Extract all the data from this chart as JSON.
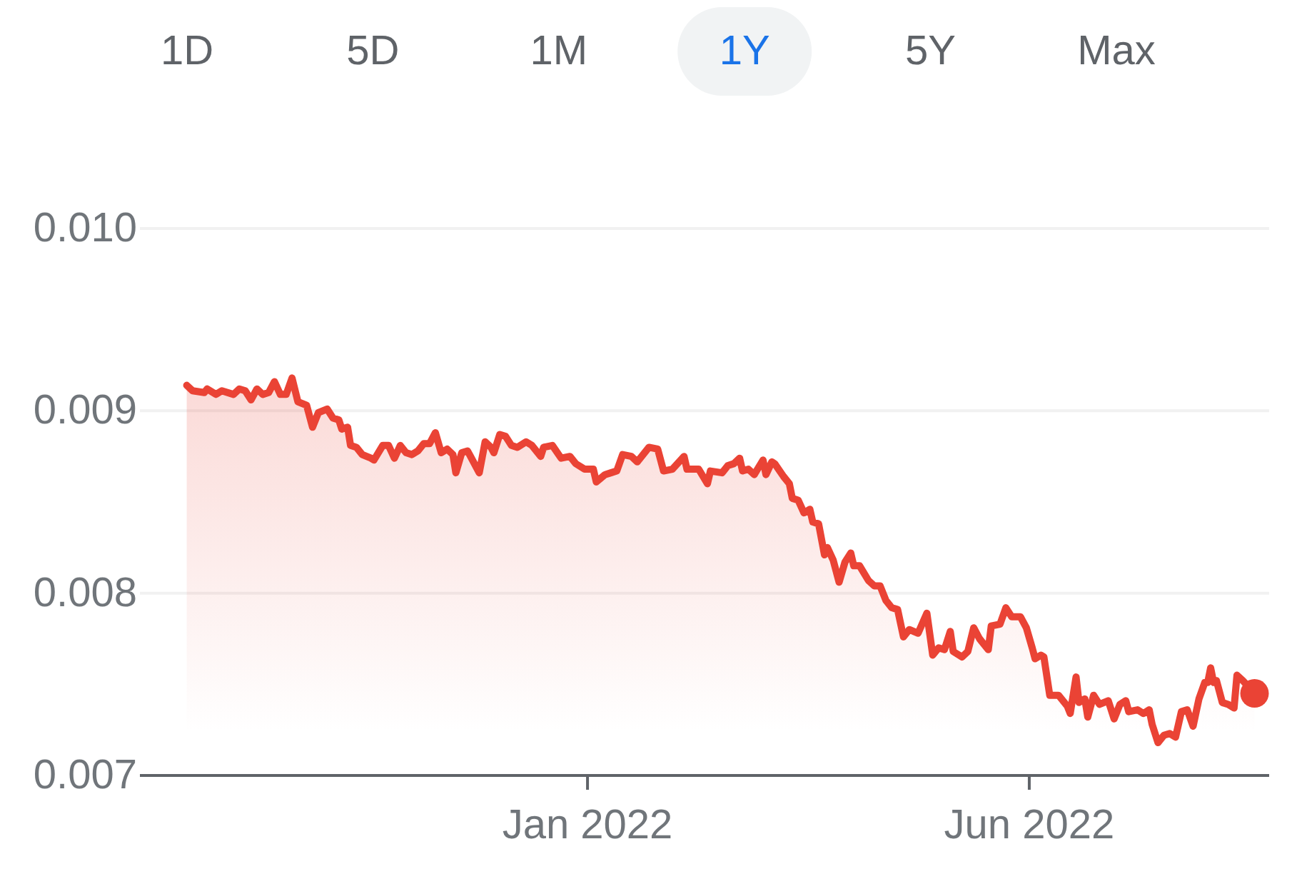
{
  "chart_data": {
    "type": "area",
    "color": "#ea4335",
    "annotations": [
      "1D",
      "5D",
      "1M",
      "1Y",
      "5Y",
      "Max"
    ],
    "xlim": [
      "2021-08-01",
      "2022-08-22"
    ],
    "ylim": [
      0.007,
      0.01
    ],
    "xticks": [
      {
        "value": "2022-01-01",
        "label": "Jan 2022"
      },
      {
        "value": "2022-06-01",
        "label": "Jun 2022"
      }
    ],
    "yticks": [
      0.007,
      0.008,
      0.009,
      {
        "value": 0.01,
        "label": "0.010"
      }
    ],
    "grid": "y",
    "x": [
      "2021-08-17",
      "2021-08-19",
      "2021-08-23",
      "2021-08-24",
      "2021-08-27",
      "2021-08-29",
      "2021-09-02",
      "2021-09-04",
      "2021-09-06",
      "2021-09-08",
      "2021-09-10",
      "2021-09-12",
      "2021-09-14",
      "2021-09-16",
      "2021-09-18",
      "2021-09-20",
      "2021-09-22",
      "2021-09-24",
      "2021-09-27",
      "2021-09-29",
      "2021-10-01",
      "2021-10-04",
      "2021-10-06",
      "2021-10-08",
      "2021-10-09",
      "2021-10-11",
      "2021-10-12",
      "2021-10-14",
      "2021-10-16",
      "2021-10-19",
      "2021-10-20",
      "2021-10-23",
      "2021-10-25",
      "2021-10-27",
      "2021-10-29",
      "2021-10-31",
      "2021-11-02",
      "2021-11-04",
      "2021-11-06",
      "2021-11-08",
      "2021-11-10",
      "2021-11-12",
      "2021-11-14",
      "2021-11-16",
      "2021-11-17",
      "2021-11-19",
      "2021-11-21",
      "2021-11-22",
      "2021-11-25",
      "2021-11-27",
      "2021-11-29",
      "2021-11-30",
      "2021-12-02",
      "2021-12-04",
      "2021-12-06",
      "2021-12-08",
      "2021-12-11",
      "2021-12-13",
      "2021-12-16",
      "2021-12-17",
      "2021-12-20",
      "2021-12-23",
      "2021-12-26",
      "2021-12-28",
      "2021-12-31",
      "2022-01-03",
      "2022-01-04",
      "2022-01-07",
      "2022-01-09",
      "2022-01-11",
      "2022-01-13",
      "2022-01-16",
      "2022-01-18",
      "2022-01-22",
      "2022-01-25",
      "2022-01-27",
      "2022-01-30",
      "2022-02-03",
      "2022-02-04",
      "2022-02-08",
      "2022-02-11",
      "2022-02-12",
      "2022-02-16",
      "2022-02-18",
      "2022-02-20",
      "2022-02-22",
      "2022-02-23",
      "2022-02-25",
      "2022-02-27",
      "2022-03-02",
      "2022-03-03",
      "2022-03-05",
      "2022-03-06",
      "2022-03-09",
      "2022-03-11",
      "2022-03-12",
      "2022-03-14",
      "2022-03-16",
      "2022-03-18",
      "2022-03-19",
      "2022-03-21",
      "2022-03-23",
      "2022-03-24",
      "2022-03-26",
      "2022-03-28",
      "2022-03-30",
      "2022-04-01",
      "2022-04-02",
      "2022-04-04",
      "2022-04-07",
      "2022-04-09",
      "2022-04-11",
      "2022-04-13",
      "2022-04-15",
      "2022-04-17",
      "2022-04-19",
      "2022-04-21",
      "2022-04-24",
      "2022-04-27",
      "2022-04-29",
      "2022-05-01",
      "2022-05-03",
      "2022-05-05",
      "2022-05-06",
      "2022-05-09",
      "2022-05-11",
      "2022-05-13",
      "2022-05-15",
      "2022-05-18",
      "2022-05-19",
      "2022-05-22",
      "2022-05-24",
      "2022-05-26",
      "2022-05-29",
      "2022-05-31",
      "2022-06-02",
      "2022-06-03",
      "2022-06-05",
      "2022-06-06",
      "2022-06-08",
      "2022-06-11",
      "2022-06-14",
      "2022-06-15",
      "2022-06-17",
      "2022-06-18",
      "2022-06-20",
      "2022-06-21",
      "2022-06-23",
      "2022-06-25",
      "2022-06-28",
      "2022-06-30",
      "2022-07-02",
      "2022-07-04",
      "2022-07-05",
      "2022-07-08",
      "2022-07-10",
      "2022-07-12",
      "2022-07-13",
      "2022-07-15",
      "2022-07-17",
      "2022-07-19",
      "2022-07-21",
      "2022-07-23",
      "2022-07-25",
      "2022-07-27",
      "2022-07-29",
      "2022-07-31",
      "2022-08-01",
      "2022-08-02",
      "2022-08-03",
      "2022-08-04",
      "2022-08-06",
      "2022-08-08",
      "2022-08-10",
      "2022-08-11",
      "2022-08-13",
      "2022-08-17"
    ],
    "values": [
      0.00914,
      0.00911,
      0.0091,
      0.00912,
      0.00909,
      0.00911,
      0.00909,
      0.00912,
      0.00911,
      0.00906,
      0.00912,
      0.00909,
      0.0091,
      0.00916,
      0.00909,
      0.00909,
      0.00918,
      0.00905,
      0.00903,
      0.00891,
      0.00899,
      0.00901,
      0.00896,
      0.00895,
      0.0089,
      0.00891,
      0.00881,
      0.0088,
      0.00876,
      0.00874,
      0.00873,
      0.00881,
      0.00881,
      0.00874,
      0.00881,
      0.00877,
      0.00876,
      0.00878,
      0.00882,
      0.00882,
      0.00888,
      0.00877,
      0.00879,
      0.00876,
      0.00866,
      0.00877,
      0.00878,
      0.00875,
      0.00866,
      0.00883,
      0.0088,
      0.00877,
      0.00887,
      0.00886,
      0.00881,
      0.0088,
      0.00883,
      0.00881,
      0.00875,
      0.0088,
      0.00881,
      0.00874,
      0.00875,
      0.00871,
      0.00868,
      0.00868,
      0.00861,
      0.00865,
      0.00866,
      0.00867,
      0.00876,
      0.00875,
      0.00872,
      0.0088,
      0.00879,
      0.00867,
      0.00868,
      0.00875,
      0.00868,
      0.00868,
      0.0086,
      0.00867,
      0.00866,
      0.0087,
      0.00871,
      0.00874,
      0.00867,
      0.00868,
      0.00865,
      0.00873,
      0.00865,
      0.00872,
      0.00871,
      0.00864,
      0.0086,
      0.00852,
      0.00851,
      0.00844,
      0.00846,
      0.00839,
      0.00838,
      0.00821,
      0.00825,
      0.00818,
      0.00806,
      0.00817,
      0.00822,
      0.00815,
      0.00815,
      0.00807,
      0.00804,
      0.00804,
      0.00796,
      0.00792,
      0.00791,
      0.00776,
      0.0078,
      0.00778,
      0.00789,
      0.00766,
      0.0077,
      0.00769,
      0.00779,
      0.00768,
      0.00765,
      0.00768,
      0.00781,
      0.00775,
      0.00769,
      0.00782,
      0.00783,
      0.00792,
      0.00787,
      0.00787,
      0.00781,
      0.0077,
      0.00764,
      0.00766,
      0.00765,
      0.00744,
      0.00744,
      0.00738,
      0.00734,
      0.00754,
      0.0074,
      0.00742,
      0.00732,
      0.00744,
      0.00739,
      0.00741,
      0.00731,
      0.00739,
      0.00741,
      0.00735,
      0.00736,
      0.00734,
      0.00736,
      0.00728,
      0.00718,
      0.00722,
      0.00723,
      0.00721,
      0.00735,
      0.00736,
      0.00727,
      0.00742,
      0.00751,
      0.00751,
      0.00759,
      0.00751,
      0.00752,
      0.0074,
      0.00739,
      0.00737,
      0.00755,
      0.00752,
      0.00745
    ]
  }
}
